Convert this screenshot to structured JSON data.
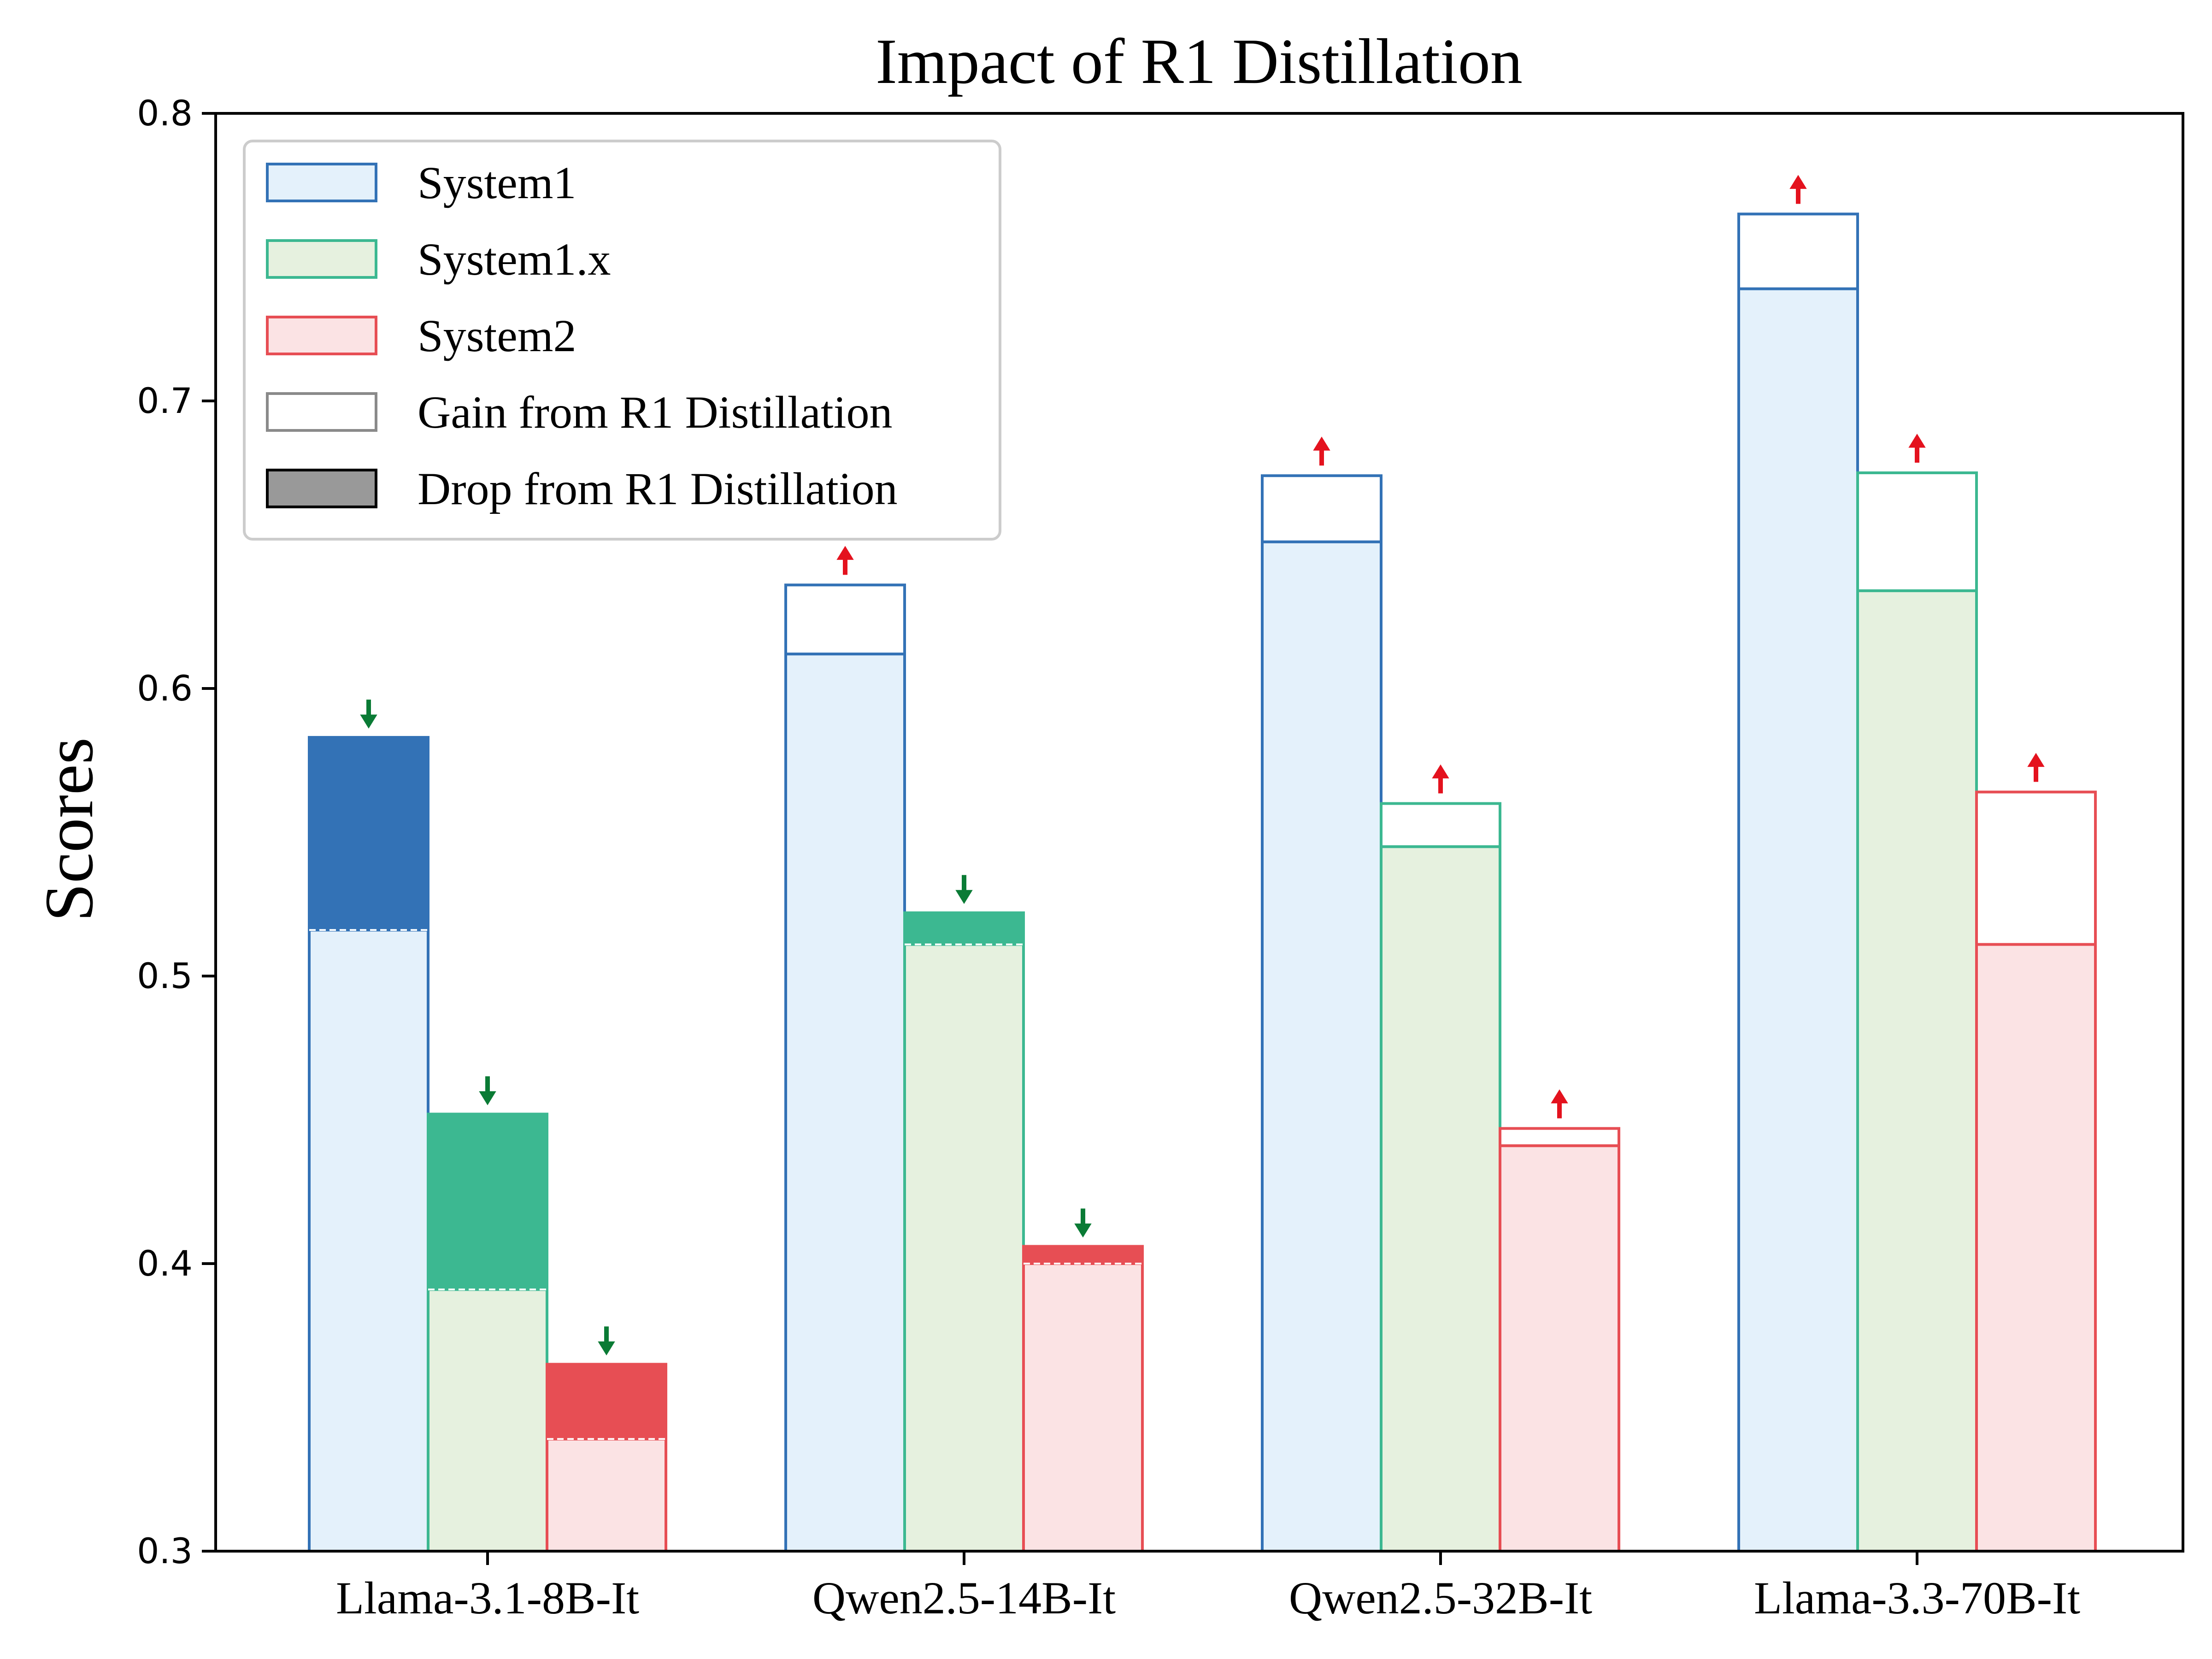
{
  "chart_data": {
    "type": "bar",
    "title": "Impact of R1 Distillation",
    "xlabel": "",
    "ylabel": "Scores",
    "ylim": [
      0.3,
      0.8
    ],
    "yticks": [
      "0.3",
      "0.4",
      "0.5",
      "0.6",
      "0.7",
      "0.8"
    ],
    "categories": [
      "Llama-3.1-8B-It",
      "Qwen2.5-14B-It",
      "Qwen2.5-32B-It",
      "Llama-3.3-70B-It"
    ],
    "legend_position": "top-left",
    "legend": [
      {
        "label": "System1",
        "kind": "series"
      },
      {
        "label": "System1.x",
        "kind": "series"
      },
      {
        "label": "System2",
        "kind": "series"
      },
      {
        "label": "Gain from R1 Distillation",
        "kind": "gain"
      },
      {
        "label": "Drop from R1 Distillation",
        "kind": "drop"
      }
    ],
    "series": [
      {
        "name": "System1",
        "before": [
          0.583,
          0.612,
          0.651,
          0.739
        ],
        "after": [
          0.516,
          0.636,
          0.674,
          0.765
        ]
      },
      {
        "name": "System1.x",
        "before": [
          0.452,
          0.522,
          0.545,
          0.634
        ],
        "after": [
          0.391,
          0.511,
          0.56,
          0.675
        ]
      },
      {
        "name": "System2",
        "before": [
          0.365,
          0.406,
          0.441,
          0.511
        ],
        "after": [
          0.339,
          0.4,
          0.447,
          0.564
        ]
      }
    ],
    "colors": {
      "System1": {
        "edge": "#3372b6",
        "fill": "#e4f1fb"
      },
      "System1.x": {
        "edge": "#3cb891",
        "fill": "#e6f1df"
      },
      "System2": {
        "edge": "#e74e54",
        "fill": "#fbe3e4"
      },
      "gain_arrow": "#e4121e",
      "drop_arrow": "#0a7b35",
      "legend_gain_edge": "#8a8a8a",
      "legend_drop_fill": "#999999",
      "axis": "#000000"
    }
  }
}
